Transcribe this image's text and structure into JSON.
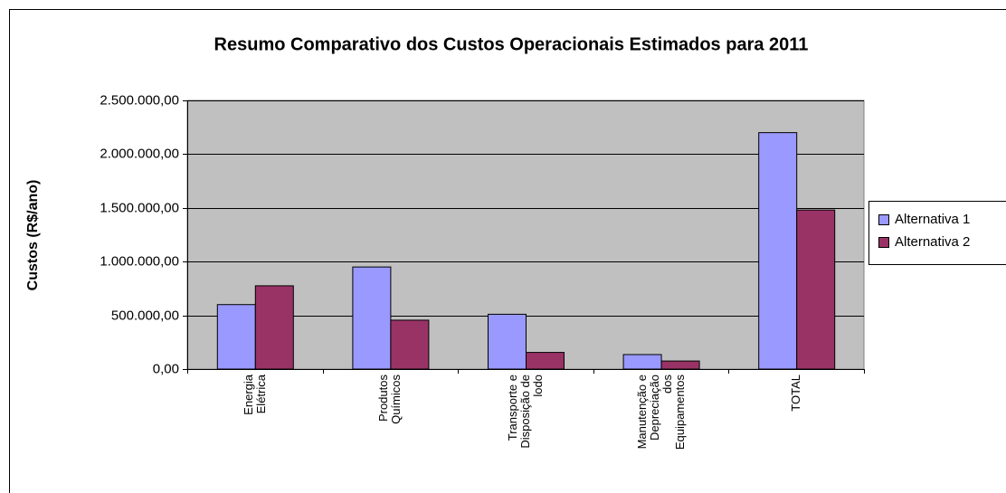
{
  "chart_data": {
    "type": "bar",
    "title": "Resumo Comparativo dos Custos Operacionais Estimados para 2011",
    "y_label": "Custos (R$/ano)",
    "categories": [
      "Energia Elétrica",
      "Produtos Químicos",
      "Transporte e Disposição de lodo",
      "Manutenção e Depreciação dos Equipamentos",
      "TOTAL"
    ],
    "series": [
      {
        "name": "Alternativa 1",
        "color": "#9999ff",
        "values": [
          600000,
          950000,
          510000,
          135000,
          2200000
        ]
      },
      {
        "name": "Alternativa 2",
        "color": "#993366",
        "values": [
          775000,
          455000,
          155000,
          75000,
          1480000
        ]
      }
    ],
    "ylim": [
      0,
      2500000
    ],
    "yticks": [
      {
        "value": 0,
        "label": "0,00"
      },
      {
        "value": 500000,
        "label": "500.000,00"
      },
      {
        "value": 1000000,
        "label": "1.000.000,00"
      },
      {
        "value": 1500000,
        "label": "1.500.000,00"
      },
      {
        "value": 2000000,
        "label": "2.000.000,00"
      },
      {
        "value": 2500000,
        "label": "2.500.000,00"
      }
    ],
    "grid": true,
    "legend": "right",
    "plot_background": "#c0c0c0"
  }
}
